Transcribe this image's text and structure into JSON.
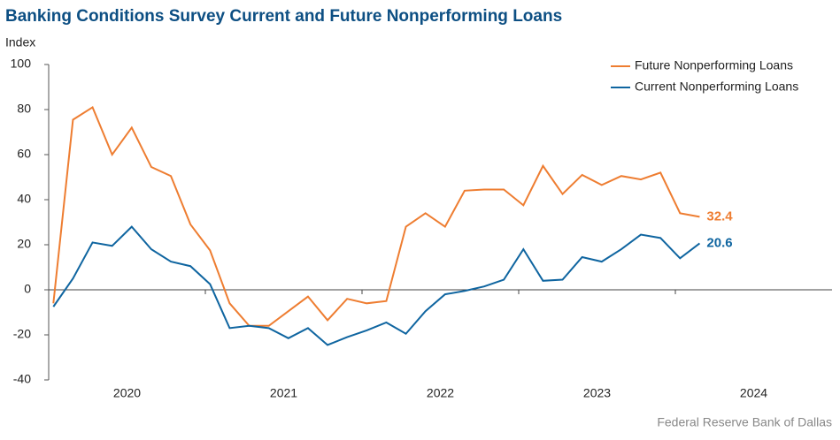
{
  "chart_data": {
    "type": "line",
    "title": "Banking Conditions Survey Current and Future Nonperforming Loans",
    "y_label": "Index",
    "source": "Federal Reserve Bank of Dallas",
    "x": [
      2020.03,
      2020.155,
      2020.28,
      2020.405,
      2020.53,
      2020.655,
      2020.78,
      2020.905,
      2021.03,
      2021.155,
      2021.28,
      2021.405,
      2021.53,
      2021.655,
      2021.78,
      2021.905,
      2022.03,
      2022.155,
      2022.28,
      2022.405,
      2022.53,
      2022.655,
      2022.78,
      2022.905,
      2023.03,
      2023.155,
      2023.28,
      2023.405,
      2023.53,
      2023.655,
      2023.78,
      2023.905,
      2024.03,
      2024.155
    ],
    "series": [
      {
        "name": "Future Nonperforming Loans",
        "color": "#ee7d31",
        "values": [
          -6,
          75.5,
          81,
          60,
          72,
          54.5,
          50.5,
          29,
          17.5,
          -6,
          -16,
          -16,
          -9.5,
          -3,
          -13.5,
          -4,
          -6,
          -5,
          28,
          34,
          28,
          44,
          44.5,
          44.5,
          37.5,
          55,
          42.5,
          51,
          46.5,
          50.5,
          49,
          52,
          34,
          32.4
        ]
      },
      {
        "name": "Current Nonperforming Loans",
        "color": "#0f65a0",
        "values": [
          -7.5,
          5,
          21,
          19.5,
          28,
          18,
          12.5,
          10.5,
          2.5,
          -17,
          -16,
          -17,
          -21.5,
          -17,
          -24.5,
          -21,
          -18,
          -14.5,
          -19.5,
          -9.5,
          -2,
          -0.5,
          1.5,
          4.5,
          18,
          4,
          4.5,
          14.5,
          12.5,
          18,
          24.5,
          23,
          14,
          20.6
        ]
      }
    ],
    "xlim": [
      2020,
      2025
    ],
    "xticks": [
      2021,
      2022,
      2023,
      2024
    ],
    "year_labels": [
      2020,
      2021,
      2022,
      2023,
      2024
    ],
    "ylim": [
      -40,
      100
    ],
    "yticks": [
      -40,
      -20,
      0,
      20,
      40,
      60,
      80,
      100
    ],
    "legend": "top-right"
  }
}
